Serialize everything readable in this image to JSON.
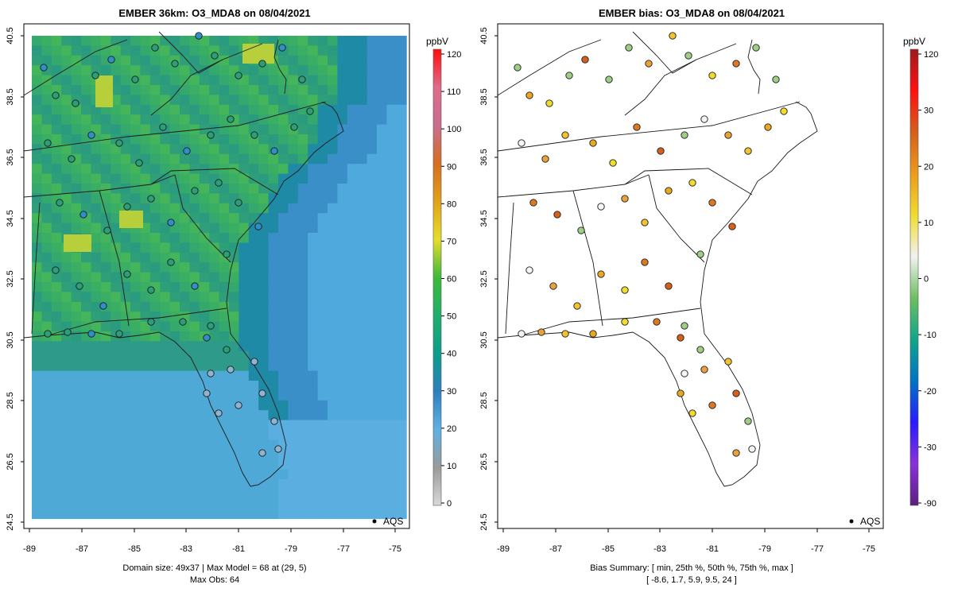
{
  "left_panel": {
    "title": "EMBER 36km: O3_MDA8 on 08/04/2021",
    "footer_line1": "Domain size: 49x37 | Max Model = 68 at (29, 5)",
    "footer_line2": "Max Obs: 64",
    "legend_label": "AQS",
    "colorbar_unit": "ppbV",
    "colorbar_ticks": [
      "0",
      "10",
      "20",
      "30",
      "40",
      "50",
      "60",
      "70",
      "80",
      "90",
      "100",
      "110",
      "120"
    ],
    "colorbar_colors": [
      "#d9d9d9",
      "#9a9a9a",
      "#5fb1e2",
      "#2d7fbf",
      "#0b9e8c",
      "#1faf6a",
      "#3dba3a",
      "#e6dd2b",
      "#e0a21a",
      "#d66e21",
      "#c86e8f",
      "#e06b8b",
      "#ff0d0d"
    ]
  },
  "right_panel": {
    "title": "EMBER bias: O3_MDA8 on 08/04/2021",
    "footer_line1": "Bias Summary: [ min, 25th %, 50th %, 75th %, max ]",
    "footer_line2": "[ -8.6,   1.7,   5.9,   9.5,   24 ]",
    "legend_label": "AQS",
    "colorbar_unit": "ppbV",
    "colorbar_ticks": [
      "-90",
      "-30",
      "-20",
      "-10",
      "0",
      "10",
      "20",
      "30",
      "120"
    ],
    "colorbar_colors": [
      "#5d1f82",
      "#8b31d8",
      "#2a1cff",
      "#0073c4",
      "#12a58a",
      "#6cbf5f",
      "#f2f2f2",
      "#f0dc2e",
      "#ec9b1d",
      "#d4601c",
      "#ff1010",
      "#a01a1a"
    ]
  },
  "map": {
    "lat_ticks": [
      "24.5",
      "26.5",
      "28.5",
      "30.5",
      "32.5",
      "34.5",
      "36.5",
      "38.5",
      "40.5"
    ],
    "lon_ticks": [
      "-89",
      "-87",
      "-85",
      "-83",
      "-81",
      "-79",
      "-77",
      "-75"
    ],
    "lat_range": [
      24.5,
      40.5
    ],
    "lon_range": [
      -89,
      -75
    ]
  }
}
